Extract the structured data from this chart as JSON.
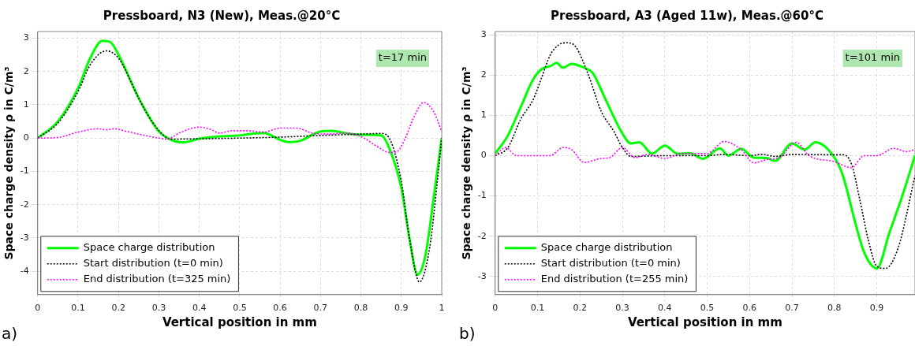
{
  "chart_data": [
    {
      "type": "line",
      "title": "Pressboard, N3 (New), Meas.@20°C",
      "xlabel": "Vertical position in mm",
      "ylabel": "Space charge density ρ in C/m³",
      "annotations": [
        "t=17 min",
        "a)"
      ],
      "xlim": [
        0,
        1
      ],
      "xticks": [
        0,
        0.1,
        0.2,
        0.3,
        0.4,
        0.5,
        0.6,
        0.7,
        0.8,
        0.9,
        1
      ],
      "ylim": [
        -4.7,
        3.2
      ],
      "yticks": [
        -4,
        -3,
        -2,
        -1,
        0,
        1,
        2,
        3
      ],
      "grid": true,
      "legend": "bottom left",
      "marker": "none",
      "series": [
        {
          "name": "Space charge distribution",
          "color": "#00ff00",
          "line_style": "solid",
          "x": [
            0,
            0.05,
            0.1,
            0.13,
            0.16,
            0.18,
            0.2,
            0.25,
            0.28,
            0.3,
            0.33,
            0.36,
            0.4,
            0.45,
            0.5,
            0.53,
            0.56,
            0.6,
            0.62,
            0.65,
            0.68,
            0.7,
            0.73,
            0.76,
            0.8,
            0.85,
            0.87,
            0.9,
            0.92,
            0.94,
            0.96,
            0.98,
            1
          ],
          "values": [
            0,
            0.5,
            1.5,
            2.4,
            2.92,
            2.88,
            2.5,
            1.2,
            0.55,
            0.2,
            -0.05,
            -0.13,
            -0.02,
            0.05,
            0.08,
            0.13,
            0.15,
            -0.05,
            -0.12,
            -0.08,
            0.1,
            0.2,
            0.22,
            0.15,
            0.1,
            0.08,
            -0.3,
            -1.5,
            -3.0,
            -4.1,
            -3.5,
            -1.8,
            0
          ]
        },
        {
          "name": "Start distribution (t=0 min)",
          "color": "#000000",
          "line_style": "dotted",
          "x": [
            0,
            0.05,
            0.1,
            0.13,
            0.17,
            0.2,
            0.25,
            0.28,
            0.32,
            0.33,
            0.4,
            0.5,
            0.6,
            0.7,
            0.8,
            0.85,
            0.87,
            0.9,
            0.92,
            0.945,
            0.97,
            0.99,
            1
          ],
          "values": [
            0,
            0.45,
            1.4,
            2.2,
            2.62,
            2.4,
            1.2,
            0.55,
            0,
            -0.03,
            -0.02,
            0,
            0.03,
            0.08,
            0.12,
            0.14,
            0,
            -1.3,
            -3.0,
            -4.32,
            -3.3,
            -1.2,
            0
          ]
        },
        {
          "name": "End distribution (t=325 min)",
          "color": "#ff00ff",
          "line_style": "dotted",
          "x": [
            0,
            0.05,
            0.1,
            0.15,
            0.17,
            0.19,
            0.22,
            0.25,
            0.3,
            0.32,
            0.35,
            0.4,
            0.43,
            0.45,
            0.48,
            0.52,
            0.56,
            0.6,
            0.64,
            0.68,
            0.72,
            0.76,
            0.8,
            0.84,
            0.87,
            0.89,
            0.91,
            0.93,
            0.955,
            0.98,
            1
          ],
          "values": [
            0,
            0.02,
            0.18,
            0.28,
            0.25,
            0.28,
            0.2,
            0.12,
            0,
            -0.03,
            0.15,
            0.33,
            0.25,
            0.15,
            0.22,
            0.22,
            0.18,
            0.3,
            0.3,
            0.15,
            0.12,
            0.15,
            0.05,
            -0.25,
            -0.43,
            -0.4,
            0,
            0.6,
            1.07,
            0.8,
            0.2
          ]
        }
      ]
    },
    {
      "type": "line",
      "title": "Pressboard, A3 (Aged 11w), Meas.@60°C",
      "xlabel": "Vertical position in mm",
      "ylabel": "Space charge density ρ in C/m³",
      "annotations": [
        "t=101 min",
        "b)"
      ],
      "xlim": [
        0,
        0.99
      ],
      "xticks": [
        0,
        0.1,
        0.2,
        0.3,
        0.4,
        0.5,
        0.6,
        0.7,
        0.8,
        0.9
      ],
      "ylim": [
        -3.45,
        3.08
      ],
      "yticks": [
        -3,
        -2,
        -1,
        0,
        1,
        2,
        3
      ],
      "grid": true,
      "legend": "bottom left",
      "marker": "none",
      "series": [
        {
          "name": "Space charge distribution",
          "color": "#00ff00",
          "line_style": "solid",
          "x": [
            0,
            0.03,
            0.06,
            0.09,
            0.11,
            0.13,
            0.145,
            0.16,
            0.18,
            0.21,
            0.23,
            0.26,
            0.3,
            0.32,
            0.34,
            0.37,
            0.4,
            0.43,
            0.46,
            0.49,
            0.53,
            0.55,
            0.58,
            0.61,
            0.64,
            0.66,
            0.7,
            0.73,
            0.755,
            0.8,
            0.82,
            0.85,
            0.87,
            0.9,
            0.93,
            0.96,
            0.99
          ],
          "values": [
            0.05,
            0.5,
            1.2,
            1.9,
            2.15,
            2.22,
            2.3,
            2.18,
            2.28,
            2.18,
            2.05,
            1.4,
            0.55,
            0.3,
            0.33,
            0.05,
            0.25,
            0.05,
            0.06,
            -0.08,
            0.18,
            0,
            0.17,
            -0.05,
            -0.06,
            -0.13,
            0.3,
            0.15,
            0.33,
            -0.05,
            -0.5,
            -1.7,
            -2.4,
            -2.8,
            -1.9,
            -1.0,
            0
          ]
        },
        {
          "name": "Start distribution (t=0 min)",
          "color": "#000000",
          "line_style": "dotted",
          "x": [
            0,
            0.03,
            0.06,
            0.09,
            0.11,
            0.13,
            0.15,
            0.17,
            0.19,
            0.22,
            0.25,
            0.28,
            0.3,
            0.32,
            0.4,
            0.5,
            0.54,
            0.6,
            0.63,
            0.66,
            0.7,
            0.8,
            0.82,
            0.84,
            0.86,
            0.88,
            0.9,
            0.92,
            0.95,
            0.99
          ],
          "values": [
            0,
            0.2,
            0.9,
            1.4,
            1.95,
            2.5,
            2.75,
            2.8,
            2.7,
            2.0,
            1.1,
            0.6,
            0.2,
            -0.02,
            0,
            0,
            0.03,
            0,
            0.03,
            -0.02,
            0.03,
            0.02,
            0.02,
            -0.2,
            -1.1,
            -2.1,
            -2.75,
            -2.8,
            -2.3,
            -0.5
          ]
        },
        {
          "name": "End distribution (t=255 min)",
          "color": "#ff00ff",
          "line_style": "dotted",
          "x": [
            0,
            0.025,
            0.05,
            0.13,
            0.16,
            0.18,
            0.21,
            0.25,
            0.27,
            0.3,
            0.33,
            0.36,
            0.4,
            0.44,
            0.5,
            0.54,
            0.58,
            0.61,
            0.64,
            0.67,
            0.71,
            0.74,
            0.8,
            0.84,
            0.87,
            0.9,
            0.94,
            0.97,
            0.99
          ],
          "values": [
            0,
            0.2,
            0,
            0,
            0.2,
            0.15,
            -0.17,
            -0.07,
            -0.05,
            0.2,
            -0.05,
            0.03,
            -0.07,
            0.05,
            0.05,
            0.35,
            0.15,
            -0.18,
            -0.1,
            -0.05,
            0.33,
            0,
            -0.15,
            -0.3,
            0,
            0,
            0.18,
            0.1,
            0.15
          ]
        }
      ]
    }
  ]
}
